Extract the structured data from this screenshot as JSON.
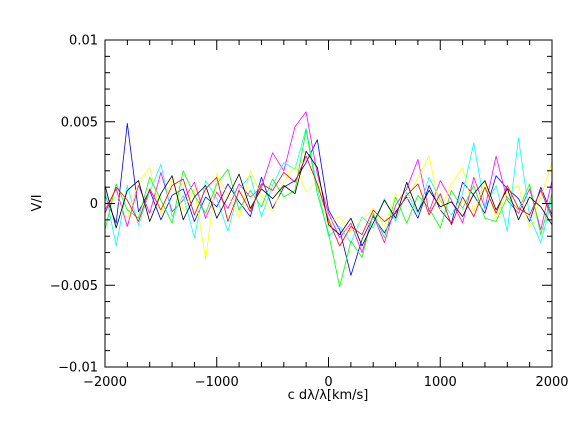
{
  "chart_data": {
    "type": "line",
    "title": "",
    "xlabel": "c dλ/λ[km/s]",
    "ylabel": "V/I",
    "xlim": [
      -2000,
      2000
    ],
    "ylim": [
      -0.01,
      0.01
    ],
    "grid": false,
    "legend": "none",
    "x_ticks": [
      {
        "value": -2000,
        "label": "−2000"
      },
      {
        "value": -1000,
        "label": "−1000"
      },
      {
        "value": 0,
        "label": "0"
      },
      {
        "value": 1000,
        "label": "1000"
      },
      {
        "value": 2000,
        "label": "2000"
      }
    ],
    "y_ticks": [
      {
        "value": 0.01,
        "label": "0.01"
      },
      {
        "value": 0.005,
        "label": "0.005"
      },
      {
        "value": 0,
        "label": "0"
      },
      {
        "value": -0.005,
        "label": "−0.005"
      },
      {
        "value": -0.01,
        "label": "−0.01"
      }
    ],
    "x_minor_step": 200,
    "y_minor_step": 0.001,
    "x": [
      -2000,
      -1900,
      -1800,
      -1700,
      -1600,
      -1500,
      -1400,
      -1300,
      -1200,
      -1100,
      -1000,
      -900,
      -800,
      -700,
      -600,
      -500,
      -400,
      -300,
      -200,
      -100,
      0,
      100,
      200,
      300,
      400,
      500,
      600,
      700,
      800,
      900,
      1000,
      1100,
      1200,
      1300,
      1400,
      1500,
      1600,
      1700,
      1800,
      1900,
      2000
    ],
    "series": [
      {
        "color": "#0000ff",
        "values": [
          0.0005,
          -0.0012,
          0.0049,
          -0.0005,
          0.0008,
          -0.001,
          0.0005,
          0.0009,
          -0.0011,
          0.0004,
          -0.0002,
          0.0012,
          0.0001,
          -0.0008,
          0.0016,
          -0.0003,
          0.001,
          0.0014,
          0.0025,
          0.0039,
          -0.0004,
          -0.0016,
          -0.0044,
          -0.0022,
          -0.0008,
          -0.0018,
          -0.0005,
          0.0004,
          -0.0009,
          0.0011,
          -0.0004,
          -0.0012,
          0.0013,
          0.0005,
          -0.0006,
          0.0017,
          0.0009,
          0.0003,
          -0.0011,
          0.001,
          -0.0007
        ]
      },
      {
        "color": "#ff00ff",
        "values": [
          -0.0004,
          0.0009,
          -0.0014,
          0.0011,
          -0.0006,
          0.0019,
          -0.0005,
          0.0002,
          0.0013,
          -0.0009,
          0.0007,
          -0.0003,
          0.0012,
          0.0004,
          0.001,
          0.0031,
          0.002,
          0.0047,
          0.0056,
          0.0018,
          -0.0006,
          -0.0021,
          -0.0012,
          -0.003,
          -0.0007,
          -0.0024,
          -0.0001,
          0.0009,
          0.0027,
          -0.0005,
          0.0014,
          0.0002,
          -0.0012,
          0.0016,
          -0.0003,
          0.0029,
          0.0002,
          -0.0006,
          0.0009,
          -0.0016,
          0.0014
        ]
      },
      {
        "color": "#00ffff",
        "values": [
          0.0008,
          -0.0026,
          0.0011,
          -0.0013,
          0.0007,
          0.0024,
          -0.0008,
          0.0005,
          -0.0021,
          0.0014,
          0.0003,
          -0.0017,
          0.0009,
          0.0017,
          -0.0008,
          0.0011,
          0.0025,
          0.0021,
          0.0046,
          0.001,
          -0.002,
          -0.0014,
          -0.0024,
          -0.0008,
          -0.0015,
          0.0003,
          -0.0011,
          0.0007,
          -0.0006,
          0.0016,
          0.0002,
          -0.0007,
          0.0006,
          0.0037,
          -0.0002,
          0.0011,
          -0.0017,
          0.004,
          -0.0008,
          -0.0024,
          0.0003
        ]
      },
      {
        "color": "#ffff00",
        "values": [
          0.0001,
          0.0004,
          -0.0009,
          0.0013,
          0.0022,
          -0.0007,
          0.0015,
          -0.0004,
          0.0009,
          -0.0034,
          0.0018,
          0.0005,
          -0.0009,
          0.002,
          0.0005,
          -0.0005,
          0.0013,
          0.0024,
          0.0007,
          0.0014,
          -0.0012,
          -0.0008,
          -0.0017,
          -0.001,
          -0.0003,
          -0.0014,
          0.0006,
          0.0002,
          0.0016,
          0.0029,
          -0.0004,
          0.0012,
          0.0022,
          -0.0005,
          0.0013,
          -0.0009,
          0.0007,
          0.0011,
          -0.0015,
          0.0004,
          0.0025
        ]
      },
      {
        "color": "#00ff00",
        "values": [
          -0.0016,
          0.0012,
          -0.0004,
          -0.0009,
          0.0016,
          0.0002,
          -0.0012,
          0.002,
          0.0005,
          -0.0006,
          0.0012,
          0.0021,
          -0.0004,
          0.0008,
          -0.0002,
          0.0015,
          0.0004,
          0.0008,
          0.0045,
          0.0006,
          -0.0018,
          -0.0051,
          -0.0023,
          -0.0033,
          -0.0006,
          -0.0021,
          0.0004,
          -0.0012,
          0.0005,
          -0.0003,
          -0.0015,
          0.0008,
          -0.0003,
          0.0011,
          -0.0009,
          -0.0011,
          0.0004,
          -0.0004,
          0.0012,
          -0.0019,
          0.0006
        ]
      },
      {
        "color": "#000000",
        "values": [
          0.0011,
          -0.0015,
          0.0008,
          0.0014,
          -0.0011,
          0.0006,
          0.0017,
          -0.001,
          0.0004,
          0.0011,
          -0.0009,
          0.0004,
          0.0018,
          -0.0003,
          0.0009,
          0.0003,
          0.0011,
          0.0006,
          0.0032,
          0.0022,
          -0.0013,
          -0.0019,
          -0.0009,
          -0.0026,
          -0.0012,
          0.0002,
          -0.0009,
          0.0013,
          -0.0005,
          0.0008,
          -0.0002,
          0.0001,
          -0.0008,
          0.0006,
          0.0014,
          -0.0004,
          0.0009,
          -0.001,
          0.0004,
          -0.0002,
          -0.0013
        ]
      },
      {
        "color": "#ff0000",
        "values": [
          -0.0006,
          0.001,
          0.0002,
          -0.0011,
          0.0009,
          -0.0004,
          0.0011,
          0.0015,
          -0.0007,
          0.0009,
          0.0016,
          -0.0011,
          0.0008,
          -0.0005,
          0.0012,
          0.0008,
          0.0019,
          0.0013,
          0.0029,
          0.0012,
          -0.001,
          -0.0026,
          -0.0014,
          -0.0019,
          -0.0004,
          -0.0011,
          -0.0006,
          0.0005,
          0.0012,
          -0.0007,
          0.0006,
          -0.0013,
          0.0004,
          -0.0008,
          0.001,
          -0.0006,
          0.0011,
          -0.0003,
          -0.0007,
          0.0008,
          -0.0009
        ]
      }
    ]
  }
}
